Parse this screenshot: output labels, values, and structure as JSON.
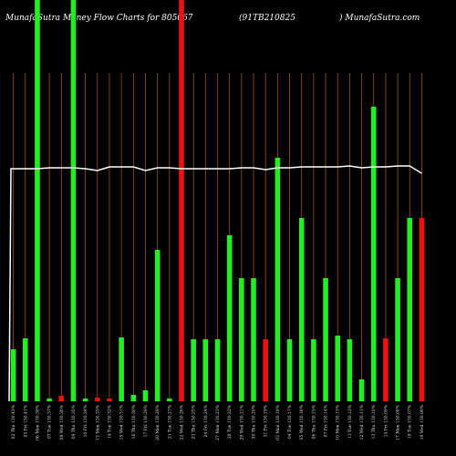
{
  "chart_data": {
    "type": "bar",
    "title": "MunafaSutra  Money Flow  Charts for 805067",
    "subtitle": "(91TB210825",
    "site": ") MunafaSutra.com",
    "categories": [
      "02 Thu 130.43%",
      "03 Fri 130.41%",
      "06 Mon 130.38%",
      "07 Tue 130.37%",
      "08 Wed 130.36%",
      "09 Thu 130.35%",
      "10 Fri 130.34%",
      "13 Mon 130.33%",
      "14 Tue 130.32%",
      "15 Wed 130.31%",
      "16 Thu 130.30%",
      "17 Fri 130.29%",
      "20 Mon 130.28%",
      "21 Tue 130.27%",
      "22 Wed 130.26%",
      "23 Thu 130.25%",
      "24 Fri 130.24%",
      "27 Mon 130.23%",
      "28 Tue 130.22%",
      "29 Wed 130.21%",
      "30 Thu 130.20%",
      "31 Fri 130.19%",
      "03 Mon 130.18%",
      "04 Tue 130.17%",
      "05 Wed 130.16%",
      "06 Thu 130.15%",
      "07 Fri 130.14%",
      "10 Mon 130.13%",
      "11 Tue 130.12%",
      "12 Wed 130.11%",
      "13 Thu 130.10%",
      "14 Fri 130.09%",
      "17 Mon 130.08%",
      "18 Tue 130.07%",
      "19 Wed 130.06%"
    ],
    "values": [
      57,
      69,
      440,
      3,
      6,
      440,
      3,
      4,
      3,
      70,
      7,
      12,
      166,
      3,
      440,
      68,
      68,
      68,
      182,
      135,
      135,
      68,
      267,
      68,
      201,
      68,
      135,
      72,
      68,
      24,
      323,
      69,
      135,
      201,
      201
    ],
    "colors": [
      "#22ee22",
      "#22ee22",
      "#22ee22",
      "#22ee22",
      "#ee1111",
      "#22ee22",
      "#22ee22",
      "#ee1111",
      "#ee1111",
      "#22ee22",
      "#22ee22",
      "#22ee22",
      "#22ee22",
      "#22ee22",
      "#ee1111",
      "#22ee22",
      "#22ee22",
      "#22ee22",
      "#22ee22",
      "#22ee22",
      "#22ee22",
      "#ee1111",
      "#22ee22",
      "#22ee22",
      "#22ee22",
      "#22ee22",
      "#22ee22",
      "#22ee22",
      "#22ee22",
      "#22ee22",
      "#22ee22",
      "#ee1111",
      "#22ee22",
      "#22ee22",
      "#ee1111"
    ],
    "line": [
      255,
      255,
      255,
      256,
      256,
      256,
      255,
      253,
      257,
      257,
      257,
      253,
      256,
      256,
      255,
      255,
      255,
      255,
      255,
      256,
      256,
      254,
      256,
      256,
      257,
      257,
      257,
      257,
      258,
      256,
      257,
      257,
      258,
      258,
      250
    ],
    "line_color": "#ffffff",
    "grid_color": "#a0520f",
    "ylim": [
      0,
      440
    ]
  }
}
